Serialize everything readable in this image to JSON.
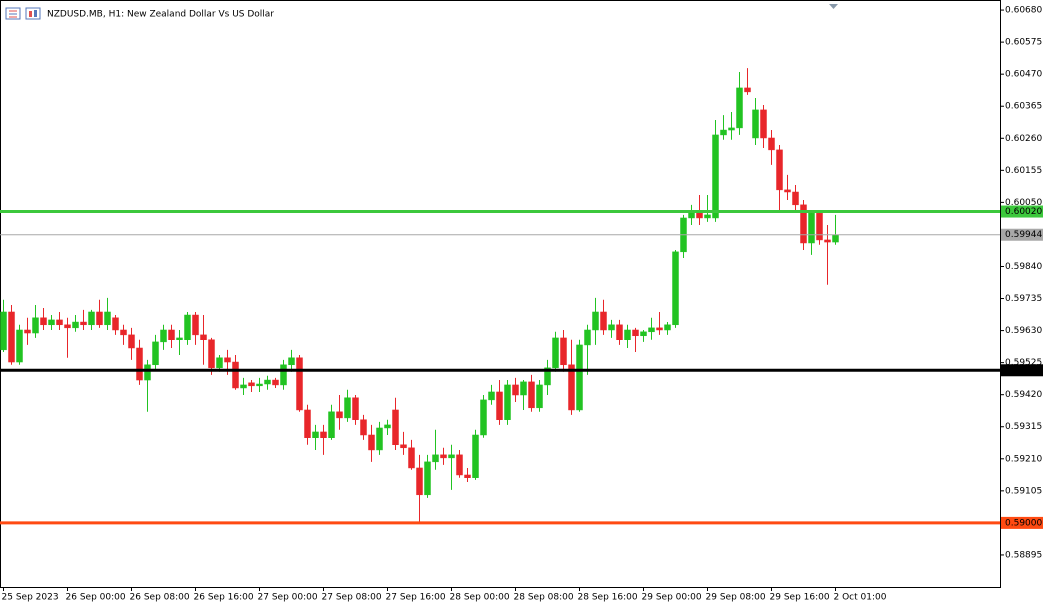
{
  "chart_data": {
    "type": "candlestick",
    "title": "NZDUSD.MB, H1:  New Zealand Dollar Vs US Dollar",
    "up_color": "#22c322",
    "down_color": "#e8262a",
    "categories": [
      "25 Sep 2023",
      null,
      null,
      null,
      null,
      null,
      null,
      null,
      "26 Sep 00:00",
      null,
      null,
      null,
      null,
      null,
      null,
      null,
      "26 Sep 08:00",
      null,
      null,
      null,
      null,
      null,
      null,
      null,
      "26 Sep 16:00",
      null,
      null,
      null,
      null,
      null,
      null,
      null,
      "27 Sep 00:00",
      null,
      null,
      null,
      null,
      null,
      null,
      null,
      "27 Sep 08:00",
      null,
      null,
      null,
      null,
      null,
      null,
      null,
      "27 Sep 16:00",
      null,
      null,
      null,
      null,
      null,
      null,
      null,
      "28 Sep 00:00",
      null,
      null,
      null,
      null,
      null,
      null,
      null,
      "28 Sep 08:00",
      null,
      null,
      null,
      null,
      null,
      null,
      null,
      "28 Sep 16:00",
      null,
      null,
      null,
      null,
      null,
      null,
      null,
      "29 Sep 00:00",
      null,
      null,
      null,
      null,
      null,
      null,
      null,
      "29 Sep 08:00",
      null,
      null,
      null,
      null,
      null,
      null,
      null,
      "29 Sep 16:00",
      null,
      null,
      null,
      null,
      null,
      null,
      null,
      "2 Oct 01:00"
    ],
    "open": [
      0.59567,
      0.59691,
      0.59527,
      0.59632,
      0.59622,
      0.59672,
      0.59649,
      0.59665,
      0.59649,
      0.59639,
      0.59658,
      0.59649,
      0.59691,
      0.59649,
      0.59672,
      0.59632,
      0.59616,
      0.59573,
      0.59468,
      0.59518,
      0.59593,
      0.59632,
      0.596,
      0.596,
      0.59681,
      0.59616,
      0.596,
      0.59508,
      0.59541,
      0.59527,
      0.59442,
      0.59459,
      0.59449,
      0.59455,
      0.59468,
      0.59452,
      0.59518,
      0.59541,
      0.5937,
      0.59279,
      0.59298,
      0.59279,
      0.59364,
      0.59344,
      0.5941,
      0.59338,
      0.59288,
      0.59239,
      0.59311,
      0.5937,
      0.59256,
      0.59246,
      0.5918,
      0.59092,
      0.592,
      0.59223,
      0.59213,
      0.59223,
      0.59157,
      0.59148,
      0.59288,
      0.59403,
      0.59429,
      0.59338,
      0.59452,
      0.59419,
      0.59462,
      0.59377,
      0.59452,
      0.59508,
      0.59606,
      0.59518,
      0.5937,
      0.59583,
      0.59632,
      0.59691,
      0.59632,
      0.59649,
      0.596,
      0.59632,
      0.59613,
      0.59626,
      0.59639,
      0.59632,
      0.59649,
      0.59888,
      0.59999,
      0.60019,
      0.59999,
      0.59999,
      0.60271,
      0.60287,
      0.60294,
      0.60425,
      0.60261,
      0.60353,
      0.60261,
      0.60222,
      0.60091,
      0.60084,
      0.60042,
      0.59917,
      0.60015,
      0.59927,
      0.5992
    ],
    "high": [
      0.59731,
      0.59714,
      0.59649,
      0.59672,
      0.59714,
      0.59704,
      0.59681,
      0.59691,
      0.59672,
      0.59681,
      0.59698,
      0.59698,
      0.59731,
      0.59737,
      0.59681,
      0.59649,
      0.59639,
      0.596,
      0.59534,
      0.59616,
      0.59649,
      0.59649,
      0.59632,
      0.59691,
      0.59691,
      0.59681,
      0.59606,
      0.5955,
      0.59567,
      0.5955,
      0.59475,
      0.59468,
      0.59475,
      0.59482,
      0.59475,
      0.59534,
      0.59567,
      0.5955,
      0.59387,
      0.59321,
      0.59321,
      0.59387,
      0.59419,
      0.59436,
      0.59419,
      0.59354,
      0.59321,
      0.59331,
      0.59338,
      0.5941,
      0.59298,
      0.59272,
      0.59223,
      0.59223,
      0.59305,
      0.59246,
      0.59256,
      0.59239,
      0.5918,
      0.59305,
      0.59419,
      0.59452,
      0.59468,
      0.59468,
      0.59475,
      0.59468,
      0.59485,
      0.59468,
      0.59534,
      0.59626,
      0.59632,
      0.596,
      0.596,
      0.59649,
      0.59737,
      0.59731,
      0.59665,
      0.59665,
      0.59649,
      0.59639,
      0.59632,
      0.59672,
      0.59691,
      0.59658,
      0.59894,
      0.60009,
      0.60042,
      0.60074,
      0.60074,
      0.6032,
      0.60336,
      0.60346,
      0.60477,
      0.6049,
      0.60392,
      0.60369,
      0.60287,
      0.60238,
      0.6014,
      0.60107,
      0.60058,
      0.60025,
      0.60025,
      0.59976,
      0.60009
    ],
    "low": [
      0.5956,
      0.59518,
      0.59518,
      0.59583,
      0.59606,
      0.59632,
      0.59632,
      0.59632,
      0.59541,
      0.59626,
      0.59632,
      0.59632,
      0.59639,
      0.59632,
      0.59616,
      0.59583,
      0.59534,
      0.59452,
      0.59364,
      0.59501,
      0.59567,
      0.59573,
      0.5955,
      0.59583,
      0.59583,
      0.59518,
      0.59485,
      0.59495,
      0.59485,
      0.59436,
      0.59419,
      0.59429,
      0.59429,
      0.59436,
      0.59442,
      0.59436,
      0.59495,
      0.59364,
      0.59256,
      0.59239,
      0.59223,
      0.59272,
      0.59305,
      0.59331,
      0.59321,
      0.59272,
      0.592,
      0.59223,
      0.59288,
      0.59239,
      0.59223,
      0.59174,
      0.58998,
      0.59082,
      0.59174,
      0.5919,
      0.59108,
      0.59148,
      0.59134,
      0.59141,
      0.59279,
      0.59387,
      0.59321,
      0.59321,
      0.59396,
      0.5937,
      0.59364,
      0.59364,
      0.59419,
      0.59495,
      0.59495,
      0.59354,
      0.59364,
      0.59485,
      0.59583,
      0.59616,
      0.59606,
      0.59583,
      0.59573,
      0.5956,
      0.59593,
      0.596,
      0.59616,
      0.59616,
      0.59639,
      0.59868,
      0.59976,
      0.59976,
      0.59986,
      0.59986,
      0.60255,
      0.60255,
      0.60271,
      0.60402,
      0.60238,
      0.60228,
      0.60173,
      0.60025,
      0.60058,
      0.60025,
      0.59894,
      0.59878,
      0.59911,
      0.5978,
      0.59911
    ],
    "close": [
      0.59691,
      0.59527,
      0.59632,
      0.59622,
      0.59672,
      0.59649,
      0.59665,
      0.59649,
      0.59639,
      0.59658,
      0.59649,
      0.59691,
      0.59649,
      0.59691,
      0.59632,
      0.59616,
      0.59573,
      0.59468,
      0.59518,
      0.59593,
      0.59632,
      0.596,
      0.59606,
      0.59681,
      0.59616,
      0.596,
      0.59508,
      0.59541,
      0.59527,
      0.59442,
      0.59452,
      0.59449,
      0.59455,
      0.59468,
      0.59452,
      0.59518,
      0.59541,
      0.5937,
      0.59279,
      0.59298,
      0.59279,
      0.59364,
      0.59344,
      0.5941,
      0.59338,
      0.59288,
      0.59239,
      0.59311,
      0.59321,
      0.59256,
      0.59246,
      0.5918,
      0.59092,
      0.592,
      0.59223,
      0.59213,
      0.59223,
      0.59157,
      0.59148,
      0.59288,
      0.59403,
      0.59429,
      0.59338,
      0.59452,
      0.59419,
      0.59462,
      0.59377,
      0.59452,
      0.59508,
      0.59606,
      0.59518,
      0.5937,
      0.59583,
      0.59632,
      0.59691,
      0.59632,
      0.59649,
      0.596,
      0.59632,
      0.59613,
      0.59626,
      0.59639,
      0.59632,
      0.59649,
      0.59888,
      0.59999,
      0.60019,
      0.59999,
      0.60009,
      0.60271,
      0.60287,
      0.60294,
      0.60425,
      0.60412,
      0.60353,
      0.60261,
      0.60222,
      0.60091,
      0.60084,
      0.60042,
      0.59917,
      0.60015,
      0.59927,
      0.5992,
      0.59944
    ],
    "ylim": [
      0.5879,
      0.60713
    ],
    "yticks": [
      {
        "value": 0.6068,
        "label": "0.60680"
      },
      0.60575,
      {
        "value": 0.6047,
        "label": "0.60470"
      },
      0.60365,
      {
        "value": 0.6026,
        "label": "0.60260"
      },
      0.60155,
      {
        "value": 0.6005,
        "label": "0.60050"
      },
      {
        "value": 0.5984,
        "label": "0.59840"
      },
      0.59735,
      {
        "value": 0.5963,
        "label": "0.59630"
      },
      0.59525,
      {
        "value": 0.5942,
        "label": "0.59420"
      },
      0.59315,
      {
        "value": 0.5921,
        "label": "0.59210"
      },
      0.59105,
      0.58895
    ],
    "levels": [
      {
        "value": 0.6002,
        "label": "0.60020",
        "color": "#3cc83c"
      },
      {
        "value": 0.595,
        "label": "0.59500",
        "color": "#000000"
      },
      {
        "value": 0.59,
        "label": "0.59000",
        "color": "#ff4a12"
      }
    ],
    "last_price": 0.59944,
    "last_price_color": "#a8a8a8"
  }
}
